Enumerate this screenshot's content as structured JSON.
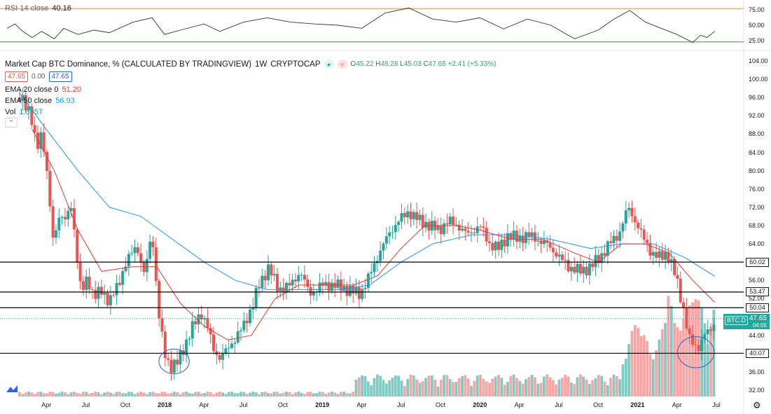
{
  "rsi": {
    "title": "RSI 14 close",
    "value": "40.16",
    "levels": [
      {
        "label": "75.00",
        "v": 75
      },
      {
        "label": "50.00",
        "v": 50
      },
      {
        "label": "25.00",
        "v": 25
      }
    ],
    "upper_band": 77,
    "lower_band": 23,
    "band_color": "#f4a261",
    "lower_color": "#4caf50",
    "line_color": "#333333"
  },
  "header": {
    "title": "Market Cap BTC Dominance, % (CALCULATED BY TRADINGVIEW)",
    "interval": "1W",
    "exchange": "CRYPTOCAP",
    "open_label": "O",
    "open": "45.22",
    "high_label": "H",
    "high": "48.28",
    "low_label": "L",
    "low": "45.03",
    "close_label": "C",
    "close": "47.65",
    "change": "+2.41 (+5.33%)",
    "bid": "47.65",
    "spread": "0.00",
    "ask": "47.65"
  },
  "indicators": {
    "ema20": {
      "label": "EMA 20 close 0",
      "value": "51.20",
      "color": "#e53935"
    },
    "ema50": {
      "label": "EMA 50 close",
      "value": "56.93",
      "color": "#2196f3"
    },
    "vol": {
      "label": "Vol",
      "value": "1.595T"
    }
  },
  "colors": {
    "up": "#26a69a",
    "down": "#ef5350",
    "vol_up": "#80cbc4",
    "vol_down": "#f8a5a5",
    "hline": "#000000",
    "circle": "#1e62c8"
  },
  "price_axis": {
    "ylim": [
      30,
      105
    ],
    "ticks": [
      "32.00",
      "36.00",
      "40.00",
      "44.00",
      "48.00",
      "52.00",
      "56.00",
      "60.00",
      "64.00",
      "68.00",
      "72.00",
      "76.00",
      "80.00",
      "84.00",
      "88.00",
      "92.00",
      "96.00",
      "100.00",
      "104.00"
    ]
  },
  "time_axis": {
    "labels": [
      {
        "t": "Apr",
        "d": 2017.25,
        "bold": false
      },
      {
        "t": "Jul",
        "d": 2017.5,
        "bold": false
      },
      {
        "t": "Oct",
        "d": 2017.75,
        "bold": false
      },
      {
        "t": "2018",
        "d": 2018.0,
        "bold": true
      },
      {
        "t": "Apr",
        "d": 2018.25,
        "bold": false
      },
      {
        "t": "Jul",
        "d": 2018.5,
        "bold": false
      },
      {
        "t": "Oct",
        "d": 2018.75,
        "bold": false
      },
      {
        "t": "2019",
        "d": 2019.0,
        "bold": true
      },
      {
        "t": "Apr",
        "d": 2019.25,
        "bold": false
      },
      {
        "t": "Jul",
        "d": 2019.5,
        "bold": false
      },
      {
        "t": "Oct",
        "d": 2019.75,
        "bold": false
      },
      {
        "t": "2020",
        "d": 2020.0,
        "bold": true
      },
      {
        "t": "Apr",
        "d": 2020.25,
        "bold": false
      },
      {
        "t": "Jul",
        "d": 2020.5,
        "bold": false
      },
      {
        "t": "Oct",
        "d": 2020.75,
        "bold": false
      },
      {
        "t": "2021",
        "d": 2021.0,
        "bold": true
      },
      {
        "t": "Apr",
        "d": 2021.25,
        "bold": false
      },
      {
        "t": "Jul",
        "d": 2021.5,
        "bold": false
      }
    ]
  },
  "horizontal_lines": [
    {
      "v": 60.02,
      "label": "60.02"
    },
    {
      "v": 53.47,
      "label": "53.47"
    },
    {
      "v": 50.04,
      "label": "50.04"
    },
    {
      "v": 40.07,
      "label": "40.07"
    }
  ],
  "annotations": [
    {
      "type": "ellipse",
      "date": 2018.06,
      "v": 38.3,
      "rx_weeks": 5,
      "ry": 2.7
    },
    {
      "type": "ellipse",
      "date": 2021.37,
      "v": 40.3,
      "rx_weeks": 6,
      "ry": 3.4
    }
  ],
  "last_price": {
    "symbol": "BTC.D",
    "value": "47.65",
    "countdown": "04:05",
    "v": 47.65
  },
  "chart_data": {
    "type": "candlestick",
    "title": "Market Cap BTC Dominance, % (CALCULATED BY TRADINGVIEW)",
    "interval": "1W",
    "xlabel": "",
    "ylabel": "",
    "ylim": [
      30,
      105
    ],
    "series_points": [
      {
        "d": 2017.1,
        "v": 96
      },
      {
        "d": 2017.14,
        "v": 93
      },
      {
        "d": 2017.19,
        "v": 85
      },
      {
        "d": 2017.22,
        "v": 89
      },
      {
        "d": 2017.26,
        "v": 77
      },
      {
        "d": 2017.29,
        "v": 65
      },
      {
        "d": 2017.33,
        "v": 70
      },
      {
        "d": 2017.37,
        "v": 69
      },
      {
        "d": 2017.41,
        "v": 73
      },
      {
        "d": 2017.44,
        "v": 62
      },
      {
        "d": 2017.47,
        "v": 53
      },
      {
        "d": 2017.51,
        "v": 57
      },
      {
        "d": 2017.55,
        "v": 52
      },
      {
        "d": 2017.6,
        "v": 54
      },
      {
        "d": 2017.65,
        "v": 51
      },
      {
        "d": 2017.7,
        "v": 55
      },
      {
        "d": 2017.76,
        "v": 60
      },
      {
        "d": 2017.82,
        "v": 64
      },
      {
        "d": 2017.87,
        "v": 57
      },
      {
        "d": 2017.92,
        "v": 67
      },
      {
        "d": 2017.96,
        "v": 49
      },
      {
        "d": 2018.0,
        "v": 40
      },
      {
        "d": 2018.04,
        "v": 37
      },
      {
        "d": 2018.08,
        "v": 38
      },
      {
        "d": 2018.13,
        "v": 42
      },
      {
        "d": 2018.18,
        "v": 46
      },
      {
        "d": 2018.23,
        "v": 49
      },
      {
        "d": 2018.27,
        "v": 46
      },
      {
        "d": 2018.31,
        "v": 41
      },
      {
        "d": 2018.35,
        "v": 39
      },
      {
        "d": 2018.4,
        "v": 41
      },
      {
        "d": 2018.44,
        "v": 43
      },
      {
        "d": 2018.5,
        "v": 46
      },
      {
        "d": 2018.55,
        "v": 50
      },
      {
        "d": 2018.6,
        "v": 55
      },
      {
        "d": 2018.66,
        "v": 59
      },
      {
        "d": 2018.72,
        "v": 54
      },
      {
        "d": 2018.8,
        "v": 55
      },
      {
        "d": 2018.86,
        "v": 58
      },
      {
        "d": 2018.92,
        "v": 53
      },
      {
        "d": 2019.0,
        "v": 55
      },
      {
        "d": 2019.08,
        "v": 55
      },
      {
        "d": 2019.16,
        "v": 54
      },
      {
        "d": 2019.24,
        "v": 53
      },
      {
        "d": 2019.3,
        "v": 57
      },
      {
        "d": 2019.36,
        "v": 62
      },
      {
        "d": 2019.42,
        "v": 66
      },
      {
        "d": 2019.48,
        "v": 69
      },
      {
        "d": 2019.55,
        "v": 71
      },
      {
        "d": 2019.62,
        "v": 69
      },
      {
        "d": 2019.68,
        "v": 68
      },
      {
        "d": 2019.74,
        "v": 67
      },
      {
        "d": 2019.8,
        "v": 69
      },
      {
        "d": 2019.86,
        "v": 68
      },
      {
        "d": 2019.92,
        "v": 66
      },
      {
        "d": 2020.0,
        "v": 68
      },
      {
        "d": 2020.06,
        "v": 64
      },
      {
        "d": 2020.12,
        "v": 63
      },
      {
        "d": 2020.18,
        "v": 66
      },
      {
        "d": 2020.24,
        "v": 65
      },
      {
        "d": 2020.3,
        "v": 66
      },
      {
        "d": 2020.36,
        "v": 65
      },
      {
        "d": 2020.42,
        "v": 64
      },
      {
        "d": 2020.48,
        "v": 62
      },
      {
        "d": 2020.56,
        "v": 59
      },
      {
        "d": 2020.64,
        "v": 58
      },
      {
        "d": 2020.7,
        "v": 59
      },
      {
        "d": 2020.76,
        "v": 61
      },
      {
        "d": 2020.82,
        "v": 64
      },
      {
        "d": 2020.88,
        "v": 66
      },
      {
        "d": 2020.94,
        "v": 72
      },
      {
        "d": 2021.0,
        "v": 68
      },
      {
        "d": 2021.04,
        "v": 65
      },
      {
        "d": 2021.09,
        "v": 62
      },
      {
        "d": 2021.14,
        "v": 61
      },
      {
        "d": 2021.19,
        "v": 62
      },
      {
        "d": 2021.24,
        "v": 57
      },
      {
        "d": 2021.29,
        "v": 50
      },
      {
        "d": 2021.33,
        "v": 43
      },
      {
        "d": 2021.38,
        "v": 41
      },
      {
        "d": 2021.42,
        "v": 44
      },
      {
        "d": 2021.47,
        "v": 45.2
      },
      {
        "d": 2021.49,
        "v": 47.65
      }
    ],
    "ema20": [
      {
        "d": 2017.16,
        "v": 89
      },
      {
        "d": 2017.3,
        "v": 80
      },
      {
        "d": 2017.45,
        "v": 67
      },
      {
        "d": 2017.6,
        "v": 58
      },
      {
        "d": 2017.8,
        "v": 59
      },
      {
        "d": 2017.95,
        "v": 59
      },
      {
        "d": 2018.1,
        "v": 51
      },
      {
        "d": 2018.25,
        "v": 46
      },
      {
        "d": 2018.4,
        "v": 43
      },
      {
        "d": 2018.55,
        "v": 44
      },
      {
        "d": 2018.7,
        "v": 52
      },
      {
        "d": 2018.85,
        "v": 55
      },
      {
        "d": 2019.0,
        "v": 55
      },
      {
        "d": 2019.2,
        "v": 55
      },
      {
        "d": 2019.35,
        "v": 57
      },
      {
        "d": 2019.5,
        "v": 63
      },
      {
        "d": 2019.65,
        "v": 68
      },
      {
        "d": 2019.85,
        "v": 68
      },
      {
        "d": 2020.0,
        "v": 67
      },
      {
        "d": 2020.2,
        "v": 65
      },
      {
        "d": 2020.4,
        "v": 65
      },
      {
        "d": 2020.6,
        "v": 62
      },
      {
        "d": 2020.75,
        "v": 60
      },
      {
        "d": 2020.9,
        "v": 64
      },
      {
        "d": 2021.05,
        "v": 64
      },
      {
        "d": 2021.2,
        "v": 62
      },
      {
        "d": 2021.35,
        "v": 56
      },
      {
        "d": 2021.49,
        "v": 51.2
      }
    ],
    "ema50": [
      {
        "d": 2017.08,
        "v": 97
      },
      {
        "d": 2017.25,
        "v": 89
      },
      {
        "d": 2017.45,
        "v": 80
      },
      {
        "d": 2017.65,
        "v": 72
      },
      {
        "d": 2017.85,
        "v": 70
      },
      {
        "d": 2018.05,
        "v": 65
      },
      {
        "d": 2018.25,
        "v": 60
      },
      {
        "d": 2018.45,
        "v": 56
      },
      {
        "d": 2018.65,
        "v": 54
      },
      {
        "d": 2018.85,
        "v": 54
      },
      {
        "d": 2019.1,
        "v": 54
      },
      {
        "d": 2019.3,
        "v": 55
      },
      {
        "d": 2019.5,
        "v": 60
      },
      {
        "d": 2019.7,
        "v": 64
      },
      {
        "d": 2019.95,
        "v": 66
      },
      {
        "d": 2020.2,
        "v": 66
      },
      {
        "d": 2020.45,
        "v": 65
      },
      {
        "d": 2020.7,
        "v": 63
      },
      {
        "d": 2020.9,
        "v": 64
      },
      {
        "d": 2021.1,
        "v": 64
      },
      {
        "d": 2021.3,
        "v": 61
      },
      {
        "d": 2021.49,
        "v": 56.93
      }
    ],
    "rsi_series": [
      {
        "d": 2017.0,
        "v": 45
      },
      {
        "d": 2017.05,
        "v": 52
      },
      {
        "d": 2017.1,
        "v": 40
      },
      {
        "d": 2017.16,
        "v": 30
      },
      {
        "d": 2017.22,
        "v": 40
      },
      {
        "d": 2017.3,
        "v": 28
      },
      {
        "d": 2017.36,
        "v": 45
      },
      {
        "d": 2017.45,
        "v": 35
      },
      {
        "d": 2017.55,
        "v": 42
      },
      {
        "d": 2017.65,
        "v": 38
      },
      {
        "d": 2017.8,
        "v": 55
      },
      {
        "d": 2017.92,
        "v": 62
      },
      {
        "d": 2018.0,
        "v": 35
      },
      {
        "d": 2018.1,
        "v": 42
      },
      {
        "d": 2018.25,
        "v": 52
      },
      {
        "d": 2018.35,
        "v": 40
      },
      {
        "d": 2018.5,
        "v": 55
      },
      {
        "d": 2018.65,
        "v": 62
      },
      {
        "d": 2018.8,
        "v": 55
      },
      {
        "d": 2018.95,
        "v": 52
      },
      {
        "d": 2019.1,
        "v": 50
      },
      {
        "d": 2019.25,
        "v": 45
      },
      {
        "d": 2019.4,
        "v": 70
      },
      {
        "d": 2019.55,
        "v": 78
      },
      {
        "d": 2019.7,
        "v": 60
      },
      {
        "d": 2019.85,
        "v": 55
      },
      {
        "d": 2020.0,
        "v": 62
      },
      {
        "d": 2020.15,
        "v": 44
      },
      {
        "d": 2020.3,
        "v": 60
      },
      {
        "d": 2020.45,
        "v": 50
      },
      {
        "d": 2020.6,
        "v": 28
      },
      {
        "d": 2020.75,
        "v": 42
      },
      {
        "d": 2020.85,
        "v": 60
      },
      {
        "d": 2020.95,
        "v": 74
      },
      {
        "d": 2021.05,
        "v": 55
      },
      {
        "d": 2021.15,
        "v": 45
      },
      {
        "d": 2021.25,
        "v": 35
      },
      {
        "d": 2021.35,
        "v": 22
      },
      {
        "d": 2021.4,
        "v": 34
      },
      {
        "d": 2021.44,
        "v": 30
      },
      {
        "d": 2021.49,
        "v": 40.16
      }
    ]
  }
}
